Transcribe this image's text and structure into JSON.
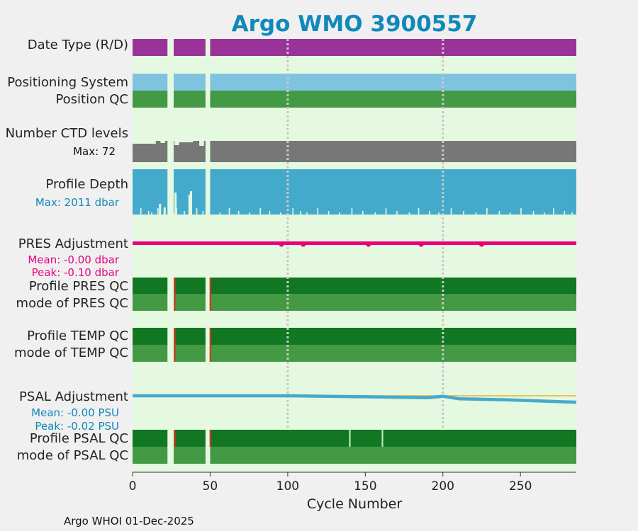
{
  "chart_data": {
    "type": "timeline",
    "title": "Argo WMO 3900557",
    "xlabel": "Cycle Number",
    "x_ticks": [
      0,
      50,
      100,
      150,
      200,
      250
    ],
    "xlim": [
      0,
      286
    ],
    "gridlines_x": [
      100,
      200
    ],
    "data_gaps": [
      [
        22.5,
        26.5
      ],
      [
        47,
        50
      ]
    ],
    "rows": [
      {
        "label": "Date Type (R/D)",
        "color": "#993399"
      },
      {
        "label": "Positioning System",
        "color": "#7ec4e0"
      },
      {
        "label": "Position QC",
        "color": "#449944"
      },
      {
        "label": "Number CTD levels",
        "sublabel": "Max: 72",
        "color": "#777777"
      },
      {
        "label": "Profile Depth",
        "sublabel": "Max: 2011 dbar",
        "color": "#44aacc"
      },
      {
        "label": "PRES Adjustment",
        "sublabel": "Mean: -0.00 dbar",
        "sublabel2": "Peak: -0.10 dbar",
        "color": "#e8007e"
      },
      {
        "label": "Profile PRES QC",
        "color": "#117722"
      },
      {
        "label": "mode of PRES QC",
        "color": "#449944"
      },
      {
        "label": "Profile TEMP QC",
        "color": "#117722"
      },
      {
        "label": "mode of TEMP QC",
        "color": "#449944"
      },
      {
        "label": "PSAL Adjustment",
        "sublabel": "Mean: -0.00 PSU",
        "sublabel2": "Peak: -0.02 PSU",
        "color": "#44aacc"
      },
      {
        "label": "Profile PSAL QC",
        "color": "#117722"
      },
      {
        "label": "mode of PSAL QC",
        "color": "#449944"
      }
    ],
    "qc_flag_cycles": [
      27,
      50
    ],
    "psal_qc_light_cycles": [
      140,
      161
    ],
    "pres_adjustment_dips": [
      96,
      110,
      152,
      186,
      225
    ],
    "psal_adjustment_points": [
      [
        0,
        0
      ],
      [
        100,
        0
      ],
      [
        150,
        -0.002
      ],
      [
        190,
        -0.004
      ],
      [
        200,
        -0.001
      ],
      [
        210,
        -0.006
      ],
      [
        240,
        -0.008
      ],
      [
        286,
        -0.013
      ]
    ],
    "colors": {
      "background": "#f0f0f0",
      "plot_bg": "#e5f8e0",
      "title": "#1188bb",
      "zero_line": "#e8b030",
      "flag_red": "#dd3322"
    }
  },
  "footer": "Argo WHOI 01-Dec-2025"
}
